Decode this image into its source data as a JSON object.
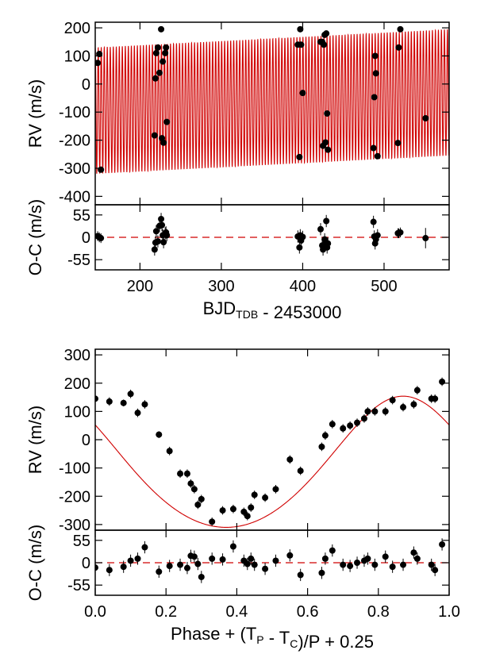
{
  "chart_data": [
    {
      "type": "scatter",
      "panel": "rv-vs-time",
      "ylabel": "RV (m/s)",
      "xlim": [
        145,
        580
      ],
      "ylim": [
        -430,
        220
      ],
      "yticks": [
        200,
        100,
        0,
        -100,
        -200,
        -300,
        -400
      ],
      "model": {
        "type": "keplerian",
        "period_days": 3.7,
        "K_ms": 225,
        "offset_start": -95,
        "offset_end": -30
      },
      "series": [
        {
          "x": [
            148,
            150,
            152,
            218,
            219,
            220,
            222,
            224,
            226,
            227,
            228,
            229,
            231,
            232,
            233,
            394,
            396,
            397,
            398,
            400,
            422,
            424,
            425,
            426,
            427,
            428,
            429,
            430,
            431,
            487,
            488,
            489,
            490,
            492,
            517,
            518,
            520,
            551
          ],
          "y": [
            75,
            107,
            -305,
            -183,
            20,
            110,
            130,
            40,
            195,
            -193,
            80,
            -209,
            110,
            130,
            -135,
            140,
            -260,
            195,
            140,
            -32,
            150,
            150,
            -220,
            140,
            175,
            -208,
            180,
            -105,
            -234,
            -228,
            -47,
            100,
            38,
            -257,
            -210,
            130,
            195,
            -122
          ]
        }
      ]
    },
    {
      "type": "scatter",
      "panel": "residuals-vs-time",
      "xlabel": "BJD",
      "xlabel_sub": "TDB",
      "xlabel_suffix": " - 2453000",
      "ylabel": "O-C (m/s)",
      "xlim": [
        145,
        580
      ],
      "ylim": [
        -80,
        80
      ],
      "xticks": [
        200,
        300,
        400,
        500
      ],
      "yticks": [
        55,
        0,
        -55
      ],
      "series": [
        {
          "x": [
            148,
            150,
            152,
            218,
            219,
            220,
            222,
            224,
            226,
            227,
            228,
            229,
            231,
            232,
            233,
            394,
            396,
            397,
            398,
            400,
            422,
            424,
            425,
            426,
            427,
            428,
            429,
            430,
            431,
            487,
            488,
            489,
            490,
            492,
            517,
            518,
            520,
            551
          ],
          "y": [
            3,
            0,
            -2,
            -30,
            -13,
            15,
            -10,
            28,
            45,
            30,
            5,
            -12,
            10,
            12,
            5,
            2,
            -25,
            5,
            -8,
            1,
            20,
            -20,
            -30,
            -20,
            -5,
            -15,
            40,
            -25,
            -15,
            38,
            2,
            -15,
            -5,
            5,
            10,
            10,
            12,
            -2
          ],
          "err": [
            12,
            12,
            12,
            15,
            15,
            15,
            15,
            15,
            15,
            15,
            15,
            15,
            15,
            15,
            15,
            15,
            15,
            15,
            15,
            15,
            15,
            15,
            15,
            15,
            15,
            15,
            15,
            15,
            15,
            15,
            15,
            15,
            15,
            15,
            12,
            12,
            12,
            25
          ]
        }
      ]
    },
    {
      "type": "scatter",
      "panel": "rv-vs-phase",
      "ylabel": "RV (m/s)",
      "xlim": [
        0,
        1
      ],
      "ylim": [
        -320,
        320
      ],
      "yticks": [
        300,
        200,
        100,
        0,
        -100,
        -200,
        -300
      ],
      "model": {
        "type": "keplerian",
        "e": 0.1,
        "K_ms": 232,
        "gamma": -78,
        "phase_min": 0.37
      },
      "series": [
        {
          "x": [
            0.0,
            0.04,
            0.08,
            0.1,
            0.12,
            0.14,
            0.18,
            0.21,
            0.24,
            0.26,
            0.27,
            0.28,
            0.29,
            0.3,
            0.33,
            0.36,
            0.39,
            0.42,
            0.43,
            0.44,
            0.45,
            0.48,
            0.51,
            0.55,
            0.58,
            0.64,
            0.65,
            0.67,
            0.7,
            0.72,
            0.74,
            0.76,
            0.77,
            0.79,
            0.82,
            0.84,
            0.87,
            0.9,
            0.91,
            0.95,
            0.96,
            0.98
          ],
          "y": [
            145,
            135,
            130,
            162,
            95,
            125,
            18,
            -40,
            -120,
            -120,
            -155,
            -175,
            -230,
            -210,
            -290,
            -250,
            -245,
            -255,
            -270,
            -240,
            -195,
            -205,
            -175,
            -70,
            -110,
            -25,
            15,
            55,
            40,
            50,
            60,
            75,
            100,
            100,
            100,
            140,
            115,
            125,
            175,
            145,
            145,
            205
          ],
          "err": [
            15,
            15,
            12,
            15,
            15,
            15,
            12,
            15,
            15,
            15,
            15,
            15,
            15,
            15,
            15,
            15,
            15,
            15,
            15,
            15,
            15,
            15,
            15,
            15,
            15,
            15,
            15,
            15,
            15,
            15,
            15,
            15,
            15,
            15,
            15,
            15,
            15,
            15,
            15,
            15,
            15,
            15
          ]
        }
      ]
    },
    {
      "type": "scatter",
      "panel": "residuals-vs-phase",
      "xlabel": "Phase + (T",
      "xlabel_sub1": "P",
      "xlabel_mid": " - T",
      "xlabel_sub2": "C",
      "xlabel_suffix": ")/P + 0.25",
      "ylabel": "O-C (m/s)",
      "xlim": [
        0,
        1
      ],
      "ylim": [
        -80,
        80
      ],
      "xticks": [
        0.0,
        0.2,
        0.4,
        0.6,
        0.8,
        1.0
      ],
      "xtick_labels": [
        "0.0",
        "0.2",
        "0.4",
        "0.6",
        "0.8",
        "1.0"
      ],
      "yticks": [
        55,
        0,
        -55
      ],
      "series": [
        {
          "x": [
            0.0,
            0.04,
            0.08,
            0.1,
            0.12,
            0.14,
            0.18,
            0.21,
            0.24,
            0.26,
            0.27,
            0.28,
            0.29,
            0.3,
            0.33,
            0.36,
            0.39,
            0.42,
            0.43,
            0.44,
            0.45,
            0.48,
            0.51,
            0.55,
            0.58,
            0.64,
            0.65,
            0.67,
            0.7,
            0.72,
            0.74,
            0.76,
            0.77,
            0.79,
            0.82,
            0.84,
            0.87,
            0.9,
            0.91,
            0.95,
            0.96,
            0.98
          ],
          "y": [
            -12,
            -18,
            -10,
            5,
            10,
            38,
            -22,
            -8,
            -5,
            -13,
            17,
            15,
            -3,
            -35,
            10,
            8,
            40,
            5,
            -3,
            10,
            -5,
            -15,
            5,
            18,
            -30,
            -25,
            10,
            30,
            -5,
            -8,
            0,
            5,
            10,
            -5,
            15,
            -10,
            -5,
            25,
            10,
            -5,
            -18,
            45
          ],
          "err": [
            15,
            15,
            15,
            15,
            15,
            15,
            15,
            15,
            15,
            15,
            15,
            15,
            15,
            15,
            15,
            15,
            15,
            15,
            15,
            15,
            15,
            15,
            15,
            15,
            15,
            15,
            15,
            15,
            15,
            15,
            15,
            15,
            15,
            15,
            15,
            15,
            15,
            15,
            15,
            15,
            15,
            15
          ]
        }
      ]
    }
  ]
}
